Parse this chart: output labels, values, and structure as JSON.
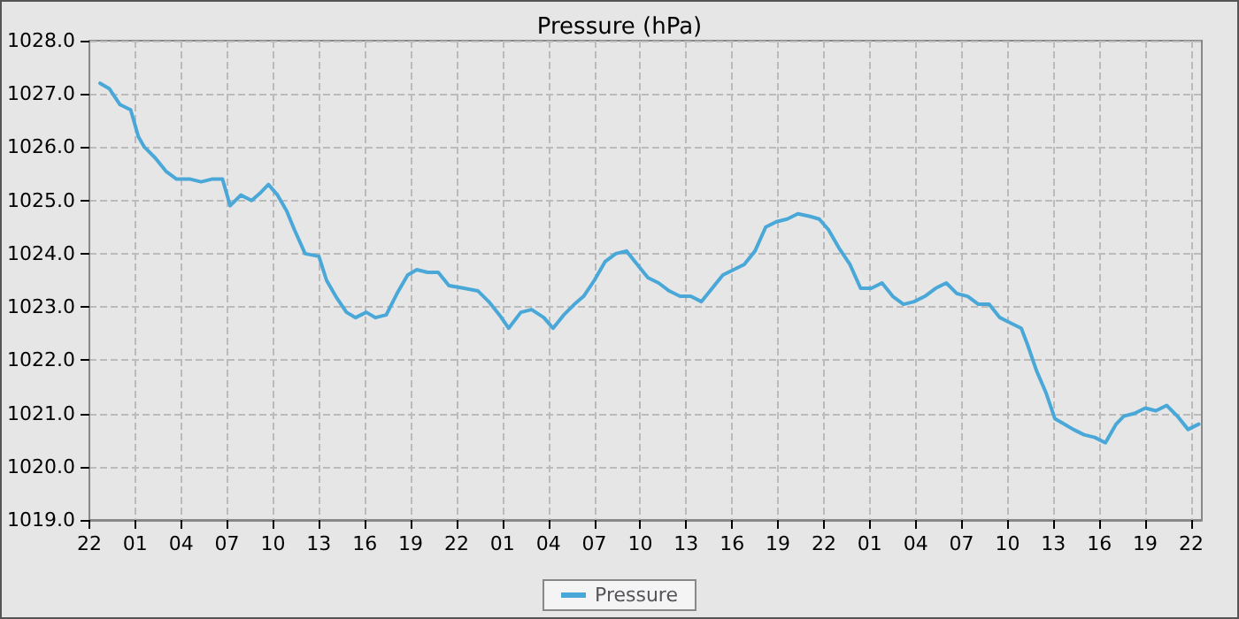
{
  "chart_data": {
    "type": "line",
    "title": "Pressure (hPa)",
    "legend": "bottom",
    "grid": true,
    "marker": "none",
    "line_style": "solid",
    "xlim": [
      "--01-01T22:00",
      "--01-04T22:42"
    ],
    "ylim": [
      1019,
      1028
    ],
    "xticks": [
      {
        "value": "--01-01T22:00",
        "label": "22"
      },
      {
        "value": "--01-02T01:00",
        "label": "01"
      },
      {
        "value": "--01-02T04:00",
        "label": "04"
      },
      {
        "value": "--01-02T07:00",
        "label": "07"
      },
      {
        "value": "--01-02T10:00",
        "label": "10"
      },
      {
        "value": "--01-02T13:00",
        "label": "13"
      },
      {
        "value": "--01-02T16:00",
        "label": "16"
      },
      {
        "value": "--01-02T19:00",
        "label": "19"
      },
      {
        "value": "--01-02T22:00",
        "label": "22"
      },
      {
        "value": "--01-03T01:00",
        "label": "01"
      },
      {
        "value": "--01-03T04:00",
        "label": "04"
      },
      {
        "value": "--01-03T07:00",
        "label": "07"
      },
      {
        "value": "--01-03T10:00",
        "label": "10"
      },
      {
        "value": "--01-03T13:00",
        "label": "13"
      },
      {
        "value": "--01-03T16:00",
        "label": "16"
      },
      {
        "value": "--01-03T19:00",
        "label": "19"
      },
      {
        "value": "--01-03T22:00",
        "label": "22"
      },
      {
        "value": "--01-04T01:00",
        "label": "01"
      },
      {
        "value": "--01-04T04:00",
        "label": "04"
      },
      {
        "value": "--01-04T07:00",
        "label": "07"
      },
      {
        "value": "--01-04T10:00",
        "label": "10"
      },
      {
        "value": "--01-04T13:00",
        "label": "13"
      },
      {
        "value": "--01-04T16:00",
        "label": "16"
      },
      {
        "value": "--01-04T19:00",
        "label": "19"
      },
      {
        "value": "--01-04T22:00",
        "label": "22"
      }
    ],
    "yticks": [
      {
        "value": 1019,
        "label": "1019.0"
      },
      {
        "value": 1020,
        "label": "1020.0"
      },
      {
        "value": 1021,
        "label": "1021.0"
      },
      {
        "value": 1022,
        "label": "1022.0"
      },
      {
        "value": 1023,
        "label": "1023.0"
      },
      {
        "value": 1024,
        "label": "1024.0"
      },
      {
        "value": 1025,
        "label": "1025.0"
      },
      {
        "value": 1026,
        "label": "1026.0"
      },
      {
        "value": 1027,
        "label": "1027.0"
      },
      {
        "value": 1028,
        "label": "1028.0"
      }
    ],
    "series": [
      {
        "name": "Pressure",
        "color": "#4aa8d8",
        "x": [
          "--01-01T22:42",
          "--01-01T23:18",
          "--01-02T00:00",
          "--01-02T00:42",
          "--01-02T01:12",
          "--01-02T01:36",
          "--01-02T02:18",
          "--01-02T03:00",
          "--01-02T03:42",
          "--01-02T04:36",
          "--01-02T05:18",
          "--01-02T06:00",
          "--01-02T06:42",
          "--01-02T07:12",
          "--01-02T07:54",
          "--01-02T08:36",
          "--01-02T09:12",
          "--01-02T09:42",
          "--01-02T10:18",
          "--01-02T10:54",
          "--01-02T11:24",
          "--01-02T12:06",
          "--01-02T13:00",
          "--01-02T13:30",
          "--01-02T14:06",
          "--01-02T14:48",
          "--01-02T15:24",
          "--01-02T16:06",
          "--01-02T16:42",
          "--01-02T17:24",
          "--01-02T18:06",
          "--01-02T18:48",
          "--01-02T19:24",
          "--01-02T20:06",
          "--01-02T20:48",
          "--01-02T21:30",
          "--01-02T22:30",
          "--01-02T23:24",
          "--01-03T00:06",
          "--01-03T00:48",
          "--01-03T01:24",
          "--01-03T02:12",
          "--01-03T02:54",
          "--01-03T03:42",
          "--01-03T04:18",
          "--01-03T05:00",
          "--01-03T05:42",
          "--01-03T06:18",
          "--01-03T07:00",
          "--01-03T07:42",
          "--01-03T08:24",
          "--01-03T09:06",
          "--01-03T09:48",
          "--01-03T10:30",
          "--01-03T11:12",
          "--01-03T11:54",
          "--01-03T12:36",
          "--01-03T13:18",
          "--01-03T14:00",
          "--01-03T14:42",
          "--01-03T15:24",
          "--01-03T16:06",
          "--01-03T16:48",
          "--01-03T17:30",
          "--01-03T18:12",
          "--01-03T18:54",
          "--01-03T19:36",
          "--01-03T20:18",
          "--01-03T21:06",
          "--01-03T21:42",
          "--01-03T22:18",
          "--01-03T23:00",
          "--01-03T23:42",
          "--01-04T00:24",
          "--01-04T01:06",
          "--01-04T01:48",
          "--01-04T02:30",
          "--01-04T03:12",
          "--01-04T03:54",
          "--01-04T04:36",
          "--01-04T05:18",
          "--01-04T06:00",
          "--01-04T06:42",
          "--01-04T07:24",
          "--01-04T08:06",
          "--01-04T08:48",
          "--01-04T09:30",
          "--01-04T10:12",
          "--01-04T10:54",
          "--01-04T11:18",
          "--01-04T11:54",
          "--01-04T12:30",
          "--01-04T13:06",
          "--01-04T13:42",
          "--01-04T14:18",
          "--01-04T15:00",
          "--01-04T15:42",
          "--01-04T16:24",
          "--01-04T17:06",
          "--01-04T17:36",
          "--01-04T18:18",
          "--01-04T19:00",
          "--01-04T19:42",
          "--01-04T20:24",
          "--01-04T21:06",
          "--01-04T21:48",
          "--01-04T22:30"
        ],
        "values": [
          1027.2,
          1027.1,
          1026.8,
          1026.7,
          1026.2,
          1026.0,
          1025.8,
          1025.55,
          1025.4,
          1025.4,
          1025.35,
          1025.4,
          1025.4,
          1024.9,
          1025.1,
          1025.0,
          1025.15,
          1025.3,
          1025.1,
          1024.8,
          1024.45,
          1024.0,
          1023.95,
          1023.5,
          1023.2,
          1022.9,
          1022.8,
          1022.9,
          1022.8,
          1022.85,
          1023.25,
          1023.6,
          1023.7,
          1023.65,
          1023.65,
          1023.4,
          1023.35,
          1023.3,
          1023.1,
          1022.85,
          1022.6,
          1022.9,
          1022.95,
          1022.8,
          1022.6,
          1022.85,
          1023.05,
          1023.2,
          1023.5,
          1023.85,
          1024.0,
          1024.05,
          1023.8,
          1023.55,
          1023.45,
          1023.3,
          1023.2,
          1023.2,
          1023.1,
          1023.35,
          1023.6,
          1023.7,
          1023.8,
          1024.05,
          1024.5,
          1024.6,
          1024.65,
          1024.75,
          1024.7,
          1024.65,
          1024.45,
          1024.1,
          1023.8,
          1023.35,
          1023.35,
          1023.45,
          1023.2,
          1023.05,
          1023.1,
          1023.2,
          1023.35,
          1023.45,
          1023.25,
          1023.2,
          1023.05,
          1023.05,
          1022.8,
          1022.7,
          1022.6,
          1022.3,
          1021.8,
          1021.4,
          1020.9,
          1020.8,
          1020.7,
          1020.6,
          1020.55,
          1020.45,
          1020.8,
          1020.95,
          1021.0,
          1021.1,
          1021.05,
          1021.15,
          1020.95,
          1020.7,
          1020.8
        ]
      }
    ]
  }
}
